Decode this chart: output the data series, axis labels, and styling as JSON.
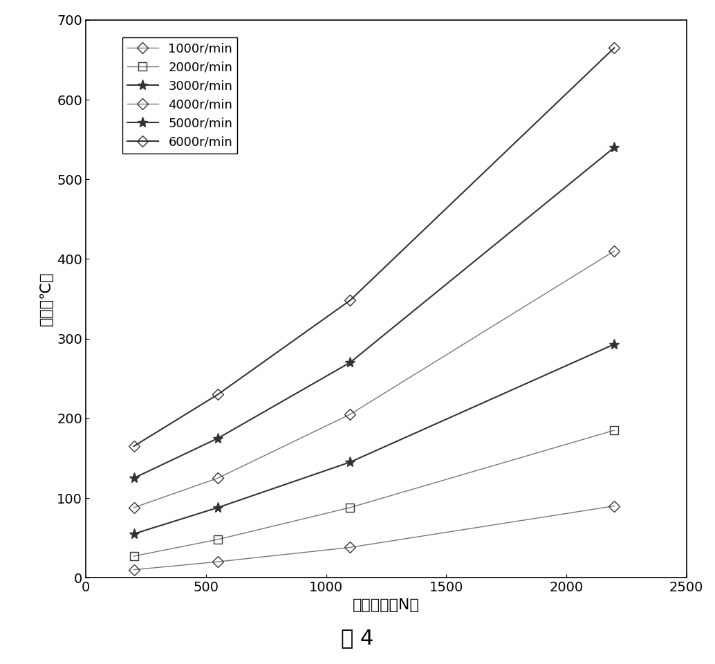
{
  "x": [
    200,
    550,
    1100,
    2200
  ],
  "series": [
    {
      "label": "1000r/min",
      "y": [
        10,
        20,
        38,
        90
      ],
      "linestyle": "-",
      "linewidth": 1.0,
      "color": "#888888",
      "marker": "diamond_open",
      "markersize": 10
    },
    {
      "label": "2000r/min",
      "y": [
        27,
        48,
        88,
        185
      ],
      "linestyle": "-",
      "linewidth": 1.0,
      "color": "#888888",
      "marker": "square_open",
      "markersize": 9
    },
    {
      "label": "3000r/min",
      "y": [
        55,
        88,
        145,
        293
      ],
      "linestyle": "-",
      "linewidth": 1.5,
      "color": "#222222",
      "marker": "star",
      "markersize": 12
    },
    {
      "label": "4000r/min",
      "y": [
        88,
        125,
        205,
        410
      ],
      "linestyle": "-",
      "linewidth": 1.0,
      "color": "#888888",
      "marker": "diamond_open_half",
      "markersize": 10
    },
    {
      "label": "5000r/min",
      "y": [
        125,
        175,
        270,
        540
      ],
      "linestyle": "-",
      "linewidth": 1.5,
      "color": "#222222",
      "marker": "star_filled",
      "markersize": 12
    },
    {
      "label": "6000r/min",
      "y": [
        165,
        230,
        348,
        665
      ],
      "linestyle": "-",
      "linewidth": 1.5,
      "color": "#222222",
      "marker": "diamond_open2",
      "markersize": 10
    }
  ],
  "xlabel": "预紧载荷（N）",
  "ylabel": "温度（℃）",
  "caption": "图 4",
  "xlim": [
    0,
    2500
  ],
  "ylim": [
    0,
    700
  ],
  "xticks": [
    0,
    500,
    1000,
    1500,
    2000,
    2500
  ],
  "yticks": [
    0,
    100,
    200,
    300,
    400,
    500,
    600,
    700
  ],
  "background_color": "#ffffff",
  "figsize": [
    10.34,
    9.6
  ],
  "dpi": 100
}
